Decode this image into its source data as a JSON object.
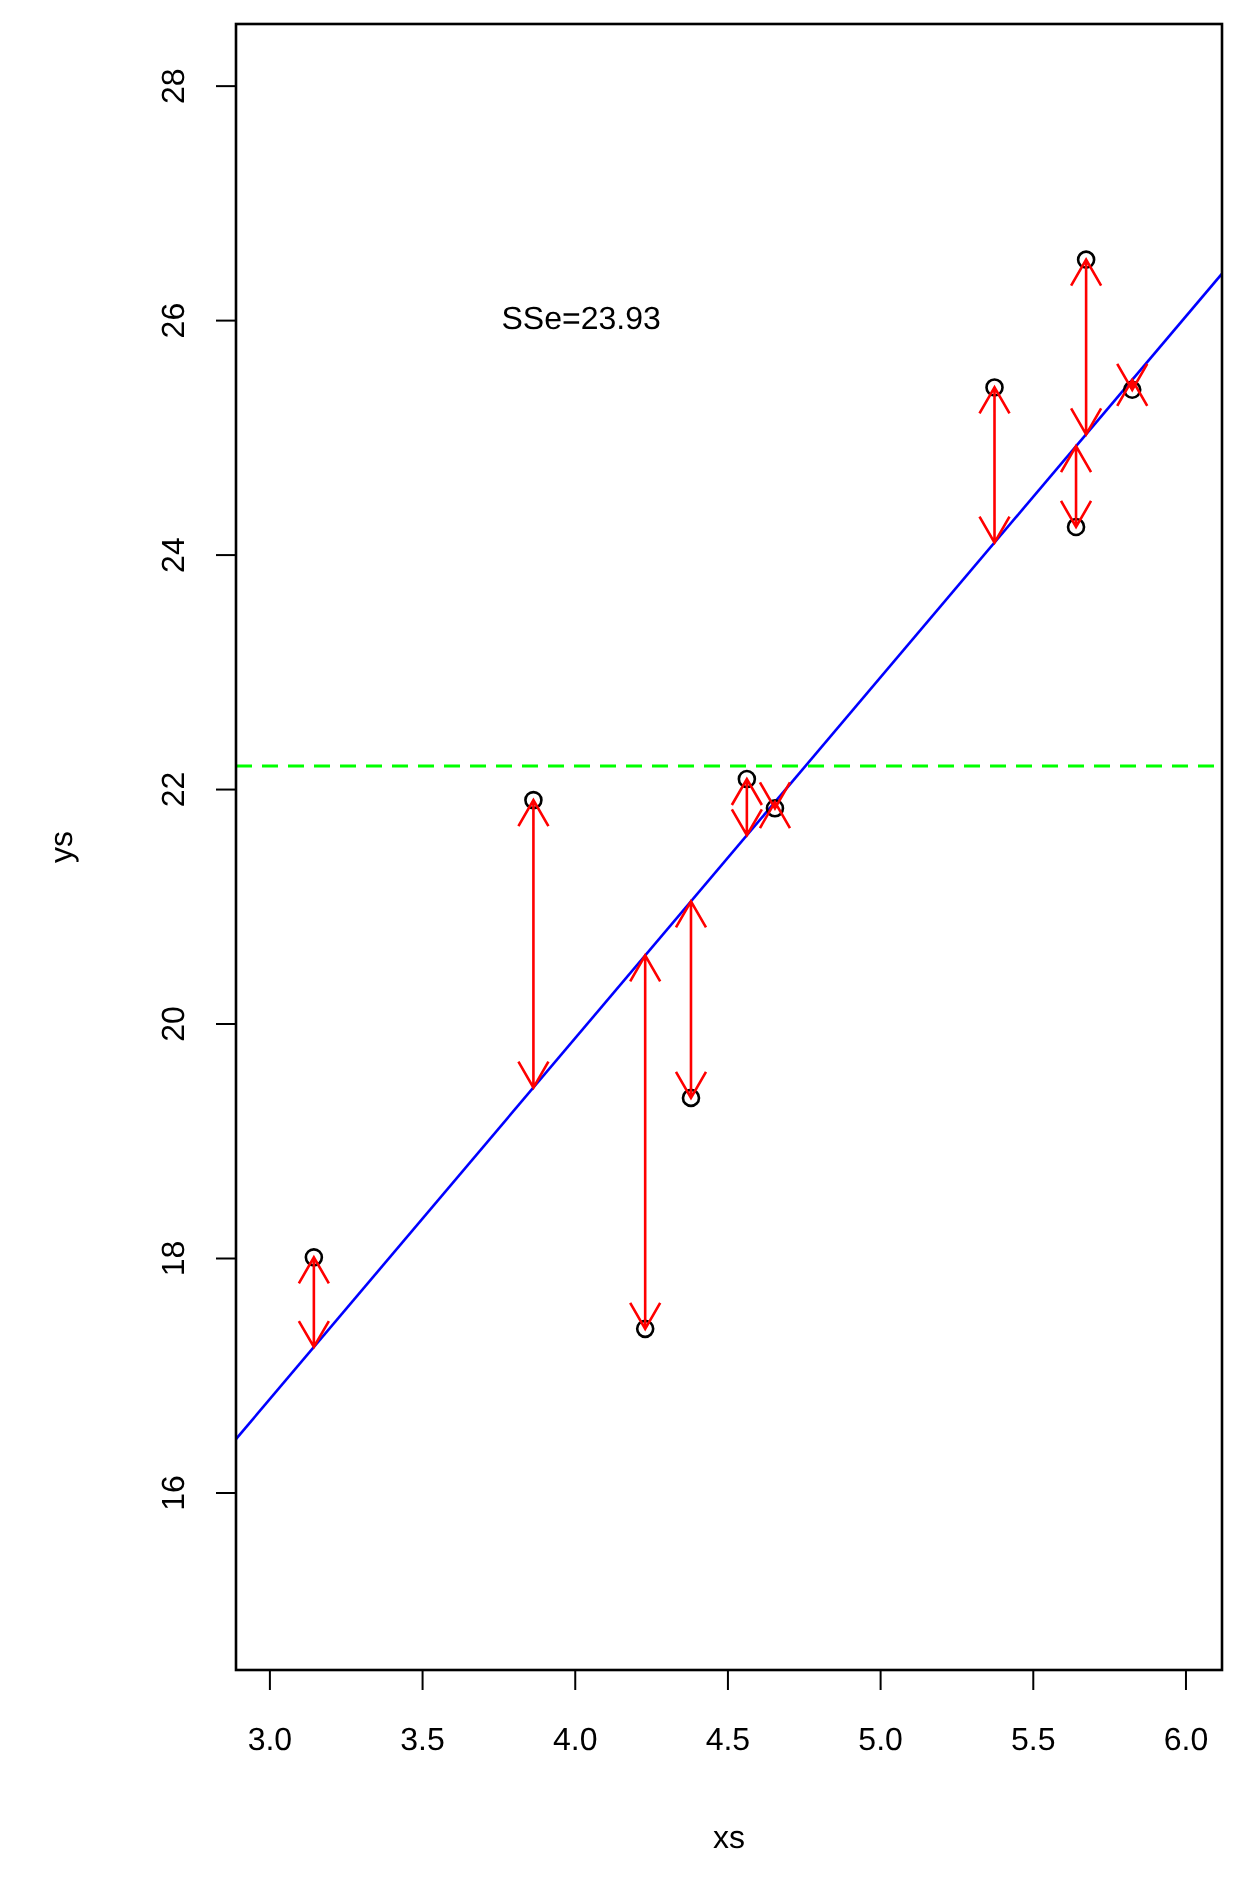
{
  "chart_data": {
    "type": "scatter",
    "xlabel": "xs",
    "ylabel": "ys",
    "annotations": [
      "SSe=23.93"
    ],
    "xlim": [
      2.889,
      6.118
    ],
    "ylim": [
      14.49,
      28.53
    ],
    "xticks": [
      {
        "value": 3,
        "label": "3.0"
      },
      {
        "value": 3.5,
        "label": "3.5"
      },
      {
        "value": 4,
        "label": "4.0"
      },
      {
        "value": 4.5,
        "label": "4.5"
      },
      {
        "value": 5,
        "label": "5.0"
      },
      {
        "value": 5.5,
        "label": "5.5"
      },
      {
        "value": 6,
        "label": "6.0"
      }
    ],
    "yticks": [
      16,
      18,
      20,
      22,
      24,
      26,
      28
    ],
    "series": [
      {
        "marker": "circle",
        "color": "#000000",
        "x": [
          3.144,
          3.863,
          4.229,
          4.379,
          4.562,
          4.654,
          5.373,
          5.64,
          5.673,
          5.824
        ],
        "values": [
          18.01,
          21.91,
          17.4,
          19.37,
          22.09,
          21.84,
          25.43,
          24.24,
          26.52,
          25.41
        ]
      },
      {
        "type": "line",
        "marker": "none",
        "line_style": "solid",
        "color": "#0000ff",
        "x": [
          2.889,
          6.118
        ],
        "values": [
          16.46,
          26.4
        ]
      }
    ],
    "ref_lines": [
      {
        "axis": "y",
        "value": 22.2,
        "color": "#00ff00",
        "line_style": "dashed"
      }
    ]
  }
}
